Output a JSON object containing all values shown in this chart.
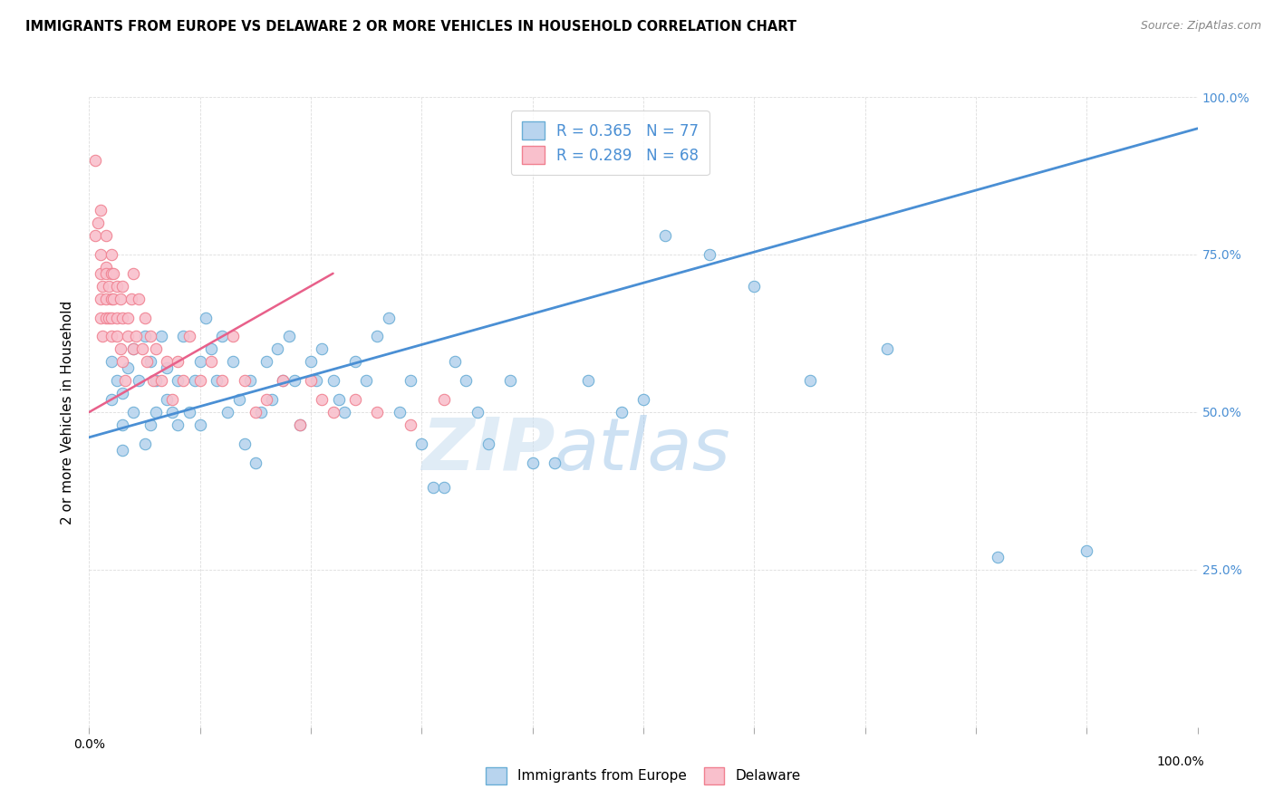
{
  "title": "IMMIGRANTS FROM EUROPE VS DELAWARE 2 OR MORE VEHICLES IN HOUSEHOLD CORRELATION CHART",
  "source": "Source: ZipAtlas.com",
  "ylabel": "2 or more Vehicles in Household",
  "xlim": [
    0,
    1
  ],
  "ylim": [
    0,
    1
  ],
  "yticks": [
    0.0,
    0.25,
    0.5,
    0.75,
    1.0
  ],
  "ytick_labels_right": [
    "",
    "25.0%",
    "50.0%",
    "75.0%",
    "100.0%"
  ],
  "xticks": [
    0.0,
    0.1,
    0.2,
    0.3,
    0.4,
    0.5,
    0.6,
    0.7,
    0.8,
    0.9,
    1.0
  ],
  "blue_R": 0.365,
  "blue_N": 77,
  "pink_R": 0.289,
  "pink_N": 68,
  "legend_label_blue": "Immigrants from Europe",
  "legend_label_pink": "Delaware",
  "blue_fill_color": "#b8d4ee",
  "pink_fill_color": "#f9c0cc",
  "blue_edge_color": "#6aaed6",
  "pink_edge_color": "#f08090",
  "blue_line_color": "#4a8fd4",
  "pink_line_color": "#e8608a",
  "blue_trend_x": [
    0.0,
    1.0
  ],
  "blue_trend_y": [
    0.46,
    0.95
  ],
  "pink_trend_x": [
    0.0,
    0.22
  ],
  "pink_trend_y": [
    0.5,
    0.72
  ],
  "watermark_zip": "ZIP",
  "watermark_atlas": "atlas",
  "background_color": "#ffffff",
  "grid_color": "#dddddd",
  "blue_scatter_x": [
    0.02,
    0.02,
    0.025,
    0.03,
    0.03,
    0.03,
    0.035,
    0.04,
    0.04,
    0.045,
    0.05,
    0.05,
    0.055,
    0.055,
    0.06,
    0.06,
    0.065,
    0.07,
    0.07,
    0.075,
    0.08,
    0.08,
    0.085,
    0.09,
    0.095,
    0.1,
    0.1,
    0.105,
    0.11,
    0.115,
    0.12,
    0.125,
    0.13,
    0.135,
    0.14,
    0.145,
    0.15,
    0.155,
    0.16,
    0.165,
    0.17,
    0.175,
    0.18,
    0.185,
    0.19,
    0.2,
    0.205,
    0.21,
    0.22,
    0.225,
    0.23,
    0.24,
    0.25,
    0.26,
    0.27,
    0.28,
    0.29,
    0.3,
    0.31,
    0.32,
    0.33,
    0.34,
    0.35,
    0.36,
    0.38,
    0.4,
    0.42,
    0.45,
    0.48,
    0.5,
    0.52,
    0.56,
    0.6,
    0.65,
    0.72,
    0.82,
    0.9
  ],
  "blue_scatter_y": [
    0.58,
    0.52,
    0.55,
    0.53,
    0.48,
    0.44,
    0.57,
    0.6,
    0.5,
    0.55,
    0.62,
    0.45,
    0.58,
    0.48,
    0.55,
    0.5,
    0.62,
    0.57,
    0.52,
    0.5,
    0.55,
    0.48,
    0.62,
    0.5,
    0.55,
    0.58,
    0.48,
    0.65,
    0.6,
    0.55,
    0.62,
    0.5,
    0.58,
    0.52,
    0.45,
    0.55,
    0.42,
    0.5,
    0.58,
    0.52,
    0.6,
    0.55,
    0.62,
    0.55,
    0.48,
    0.58,
    0.55,
    0.6,
    0.55,
    0.52,
    0.5,
    0.58,
    0.55,
    0.62,
    0.65,
    0.5,
    0.55,
    0.45,
    0.38,
    0.38,
    0.58,
    0.55,
    0.5,
    0.45,
    0.55,
    0.42,
    0.42,
    0.55,
    0.5,
    0.52,
    0.78,
    0.75,
    0.7,
    0.55,
    0.6,
    0.27,
    0.28
  ],
  "pink_scatter_x": [
    0.005,
    0.005,
    0.008,
    0.01,
    0.01,
    0.01,
    0.01,
    0.01,
    0.012,
    0.012,
    0.015,
    0.015,
    0.015,
    0.015,
    0.015,
    0.018,
    0.018,
    0.02,
    0.02,
    0.02,
    0.02,
    0.02,
    0.022,
    0.022,
    0.025,
    0.025,
    0.025,
    0.028,
    0.028,
    0.03,
    0.03,
    0.03,
    0.032,
    0.035,
    0.035,
    0.038,
    0.04,
    0.04,
    0.042,
    0.045,
    0.048,
    0.05,
    0.052,
    0.055,
    0.058,
    0.06,
    0.065,
    0.07,
    0.075,
    0.08,
    0.085,
    0.09,
    0.1,
    0.11,
    0.12,
    0.13,
    0.14,
    0.15,
    0.16,
    0.175,
    0.19,
    0.2,
    0.21,
    0.22,
    0.24,
    0.26,
    0.29,
    0.32
  ],
  "pink_scatter_y": [
    0.9,
    0.78,
    0.8,
    0.72,
    0.68,
    0.65,
    0.75,
    0.82,
    0.7,
    0.62,
    0.73,
    0.68,
    0.65,
    0.72,
    0.78,
    0.7,
    0.65,
    0.72,
    0.68,
    0.65,
    0.62,
    0.75,
    0.68,
    0.72,
    0.65,
    0.7,
    0.62,
    0.68,
    0.6,
    0.65,
    0.7,
    0.58,
    0.55,
    0.65,
    0.62,
    0.68,
    0.6,
    0.72,
    0.62,
    0.68,
    0.6,
    0.65,
    0.58,
    0.62,
    0.55,
    0.6,
    0.55,
    0.58,
    0.52,
    0.58,
    0.55,
    0.62,
    0.55,
    0.58,
    0.55,
    0.62,
    0.55,
    0.5,
    0.52,
    0.55,
    0.48,
    0.55,
    0.52,
    0.5,
    0.52,
    0.5,
    0.48,
    0.52
  ]
}
